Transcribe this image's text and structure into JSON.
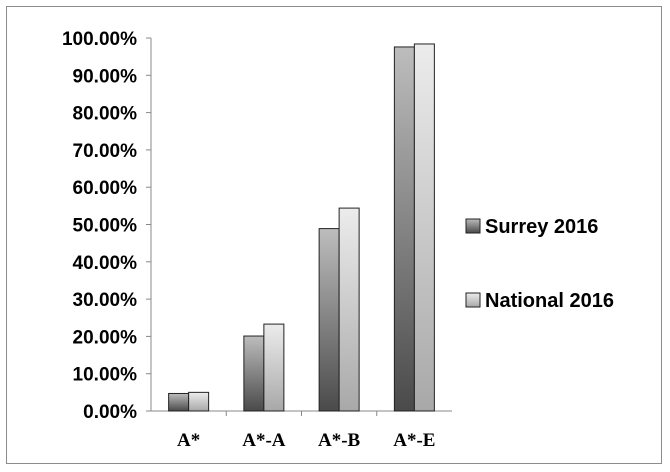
{
  "chart_data": {
    "type": "bar",
    "categories": [
      "A*",
      "A*-A",
      "A*-B",
      "A*-E"
    ],
    "series": [
      {
        "name": "Surrey 2016",
        "values": [
          4.7,
          20.1,
          48.9,
          97.6
        ]
      },
      {
        "name": "National 2016",
        "values": [
          5.0,
          23.3,
          54.4,
          98.4
        ]
      }
    ],
    "ylim": [
      0,
      100
    ],
    "y_ticks": [
      "0.00%",
      "10.00%",
      "20.00%",
      "30.00%",
      "40.00%",
      "50.00%",
      "60.00%",
      "70.00%",
      "80.00%",
      "90.00%",
      "100.00%"
    ],
    "grid": false,
    "legend_position": "right",
    "colors": {
      "surrey_dark": "#4a4a4a",
      "surrey_light": "#bdbdbd",
      "national_dark": "#a8a8a8",
      "national_light": "#ececec",
      "border": "#222222"
    }
  }
}
